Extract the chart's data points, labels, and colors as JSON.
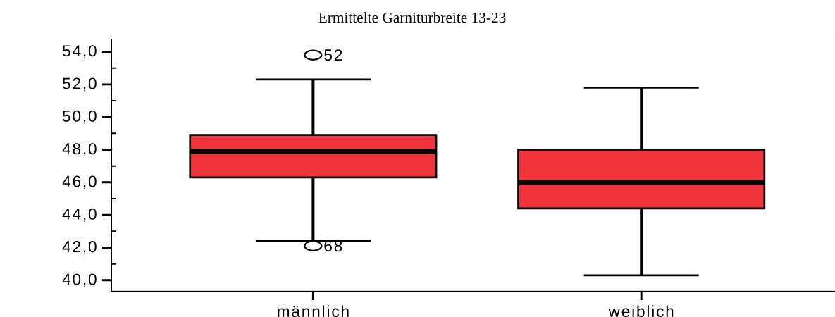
{
  "chart_data": {
    "type": "box",
    "title": "Ermittelte Garniturbreite 13-23",
    "categories": [
      "männlich",
      "weiblich"
    ],
    "color": "#f0343a",
    "boxes": [
      {
        "low": 42.4,
        "q1": 46.3,
        "median": 47.9,
        "q3": 48.9,
        "high": 52.3,
        "outliers": [
          53.8,
          42.1
        ]
      },
      {
        "low": 40.3,
        "q1": 44.4,
        "median": 46.0,
        "q3": 48.0,
        "high": 51.8
      }
    ],
    "ylim": [
      39.3,
      54.8
    ],
    "yticks": [
      {
        "value": 40,
        "label": "40,0"
      },
      {
        "value": 41,
        "label": null
      },
      {
        "value": 42,
        "label": "42,0"
      },
      {
        "value": 43,
        "label": null
      },
      {
        "value": 44,
        "label": "44,0"
      },
      {
        "value": 45,
        "label": null
      },
      {
        "value": 46,
        "label": "46,0"
      },
      {
        "value": 47,
        "label": null
      },
      {
        "value": 48,
        "label": "48,0"
      },
      {
        "value": 49,
        "label": null
      },
      {
        "value": 50,
        "label": "50,0"
      },
      {
        "value": 51,
        "label": null
      },
      {
        "value": 52,
        "label": "52,0"
      },
      {
        "value": 53,
        "label": null
      },
      {
        "value": 54,
        "label": "54,0"
      }
    ],
    "annotations": [
      "52",
      "68"
    ],
    "grid": false
  }
}
